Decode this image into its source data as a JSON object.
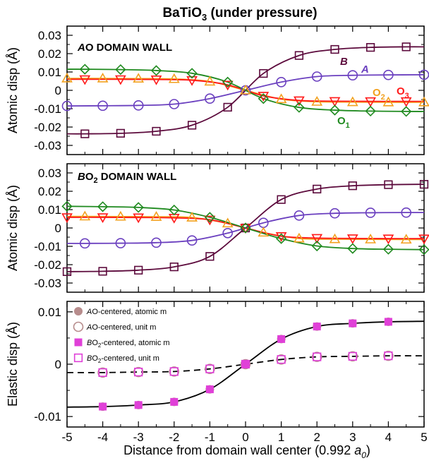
{
  "figure": {
    "title": "BaTiO3 (under pressure)",
    "title_main": "BaTiO",
    "title_sub": "3",
    "title_rest": " (under pressure)",
    "xlabel_main": "Distance from domain wall center (0.992 ",
    "xlabel_a": "a",
    "xlabel_sub": "0",
    "xlabel_close": ")"
  },
  "chart_data": [
    {
      "type": "line",
      "title": "AO DOMAIN WALL",
      "title_italic": "A",
      "title_rest": "O DOMAIN WALL",
      "ylabel": "Atomic disp (Å)",
      "xlim": [
        -5,
        5
      ],
      "ylim": [
        -0.035,
        0.035
      ],
      "xticks": [
        -5,
        -4,
        -3,
        -2,
        -1,
        0,
        1,
        2,
        3,
        4,
        5
      ],
      "yticks": [
        -0.03,
        -0.02,
        -0.01,
        0,
        0.01,
        0.02,
        0.03
      ],
      "ytick_labels": [
        "-0.03",
        "-0.02",
        "-0.01",
        "0",
        "0.01",
        "0.02",
        "0.03"
      ],
      "series": [
        {
          "name": "B",
          "color": "#5c0a3c",
          "marker": "square",
          "x": [
            -4.5,
            -3.5,
            -2.5,
            -1.5,
            -0.5,
            0.5,
            1.5,
            2.5,
            3.5,
            4.5
          ],
          "y": [
            -0.0237,
            -0.0234,
            -0.0223,
            -0.019,
            -0.0092,
            0.0092,
            0.019,
            0.0223,
            0.0234,
            0.0237
          ],
          "label": "B",
          "label_italic": true
        },
        {
          "name": "A",
          "color": "#6a3fbf",
          "marker": "circle",
          "x": [
            -5,
            -4,
            -3,
            -2,
            -1,
            0,
            1,
            2,
            3,
            4,
            5
          ],
          "y": [
            -0.0085,
            -0.0084,
            -0.0082,
            -0.0075,
            -0.0045,
            0,
            0.0045,
            0.0075,
            0.0082,
            0.0084,
            0.0085
          ],
          "label": "A",
          "label_italic": true
        },
        {
          "name": "O2",
          "color": "#f2a11f",
          "marker": "triangle-up",
          "x": [
            -5,
            -4,
            -3,
            -2,
            -1,
            0,
            1,
            2,
            3,
            4,
            5
          ],
          "y": [
            0.0065,
            0.0065,
            0.0064,
            0.0062,
            0.0048,
            0,
            -0.0048,
            -0.0062,
            -0.0064,
            -0.0065,
            -0.0065
          ],
          "label": "O",
          "label_sub": "2"
        },
        {
          "name": "O3",
          "color": "#ff1a1a",
          "marker": "triangle-down",
          "x": [
            -4.5,
            -3.5,
            -2.5,
            -1.5,
            -0.5,
            0.5,
            1.5,
            2.5,
            3.5,
            4.5
          ],
          "y": [
            0.006,
            0.006,
            0.0059,
            0.0055,
            0.003,
            -0.003,
            -0.0055,
            -0.0059,
            -0.006,
            -0.006
          ],
          "label": "O",
          "label_sub": "3"
        },
        {
          "name": "O1",
          "color": "#1f8a1f",
          "marker": "diamond",
          "x": [
            -4.5,
            -3.5,
            -2.5,
            -1.5,
            -0.5,
            0.5,
            1.5,
            2.5,
            3.5,
            4.5
          ],
          "y": [
            0.0115,
            0.0113,
            0.0108,
            0.0093,
            0.0045,
            -0.0045,
            -0.0093,
            -0.0108,
            -0.0113,
            -0.0115
          ],
          "label": "O",
          "label_sub": "1"
        }
      ]
    },
    {
      "type": "line",
      "title": "BO2 DOMAIN WALL",
      "title_italic": "B",
      "title_rest": "O",
      "title_sub": "2",
      "title_tail": " DOMAIN WALL",
      "ylabel": "Atomic disp (Å)",
      "xlim": [
        -5,
        5
      ],
      "ylim": [
        -0.035,
        0.035
      ],
      "xticks": [
        -5,
        -4,
        -3,
        -2,
        -1,
        0,
        1,
        2,
        3,
        4,
        5
      ],
      "yticks": [
        -0.03,
        -0.02,
        -0.01,
        0,
        0.01,
        0.02,
        0.03
      ],
      "ytick_labels": [
        "-0.03",
        "-0.02",
        "-0.01",
        "0",
        "0.01",
        "0.02",
        "0.03"
      ],
      "series": [
        {
          "name": "B",
          "color": "#5c0a3c",
          "marker": "square",
          "x": [
            -5,
            -4,
            -3,
            -2,
            -1,
            0,
            1,
            2,
            3,
            4,
            5
          ],
          "y": [
            -0.0238,
            -0.0236,
            -0.023,
            -0.0212,
            -0.0155,
            0,
            0.0155,
            0.0212,
            0.023,
            0.0236,
            0.0238
          ]
        },
        {
          "name": "A",
          "color": "#6a3fbf",
          "marker": "circle",
          "x": [
            -4.5,
            -3.5,
            -2.5,
            -1.5,
            -0.5,
            0.5,
            1.5,
            2.5,
            3.5,
            4.5
          ],
          "y": [
            -0.0084,
            -0.0083,
            -0.008,
            -0.0068,
            -0.0028,
            0.0028,
            0.0068,
            0.008,
            0.0083,
            0.0084
          ]
        },
        {
          "name": "O2",
          "color": "#f2a11f",
          "marker": "triangle-up",
          "x": [
            -4.5,
            -3.5,
            -2.5,
            -1.5,
            -0.5,
            0.5,
            1.5,
            2.5,
            3.5,
            4.5
          ],
          "y": [
            0.0063,
            0.0062,
            0.0061,
            0.0057,
            0.0025,
            -0.0025,
            -0.0057,
            -0.0061,
            -0.0062,
            -0.0063
          ]
        },
        {
          "name": "O3",
          "color": "#ff1a1a",
          "marker": "triangle-down",
          "x": [
            -5,
            -4,
            -3,
            -2,
            -1,
            0,
            1,
            2,
            3,
            4,
            5
          ],
          "y": [
            0.0058,
            0.0058,
            0.0057,
            0.0055,
            0.0045,
            0,
            -0.0045,
            -0.0055,
            -0.0057,
            -0.0058,
            -0.0058
          ]
        },
        {
          "name": "O1",
          "color": "#1f8a1f",
          "marker": "diamond",
          "x": [
            -5,
            -4,
            -3,
            -2,
            -1,
            0,
            1,
            2,
            3,
            4,
            5
          ],
          "y": [
            0.0118,
            0.0116,
            0.0112,
            0.0098,
            0.0058,
            0,
            -0.0058,
            -0.0098,
            -0.0112,
            -0.0116,
            -0.0118
          ]
        }
      ]
    },
    {
      "type": "line",
      "ylabel": "Elastic disp (Å)",
      "xlim": [
        -5,
        5
      ],
      "ylim": [
        -0.012,
        0.012
      ],
      "xticks": [
        -5,
        -4,
        -3,
        -2,
        -1,
        0,
        1,
        2,
        3,
        4,
        5
      ],
      "xtick_labels": [
        "-5",
        "-4",
        "-3",
        "-2",
        "-1",
        "0",
        "1",
        "2",
        "3",
        "4",
        "5"
      ],
      "yticks": [
        -0.01,
        0,
        0.01
      ],
      "ytick_labels": [
        "-0.01",
        "0",
        "0.01"
      ],
      "curves": [
        {
          "name": "atomic m",
          "style": "solid",
          "x": [
            -5,
            -4,
            -3,
            -2,
            -1,
            0,
            1,
            2,
            3,
            4,
            5
          ],
          "y": [
            -0.0082,
            -0.0081,
            -0.0078,
            -0.0072,
            -0.0048,
            0,
            0.0048,
            0.0072,
            0.0078,
            0.0081,
            0.0082
          ]
        },
        {
          "name": "unit m",
          "style": "dashed",
          "x": [
            -5,
            -4,
            -3,
            -2,
            -1,
            0,
            1,
            2,
            3,
            4,
            5
          ],
          "y": [
            -0.0016,
            -0.0016,
            -0.0015,
            -0.0014,
            -0.0009,
            0,
            0.0009,
            0.0014,
            0.0015,
            0.0016,
            0.0016
          ]
        }
      ],
      "series": [
        {
          "name": "AO-centered, atomic m",
          "color": "#b78c8c",
          "marker": "filled-circle",
          "x": [
            -4,
            -3,
            -2,
            -1,
            0,
            1,
            2,
            3,
            4
          ],
          "y": [
            -0.0081,
            -0.0078,
            -0.0072,
            -0.0048,
            0,
            0.0048,
            0.0072,
            0.0078,
            0.0081
          ],
          "legend_italic": "A",
          "legend_rest": "O-centered, atomic m"
        },
        {
          "name": "AO-centered, unit m",
          "color": "#b78c8c",
          "marker": "open-circle",
          "x": [
            -4,
            -3,
            -2,
            -1,
            0,
            1,
            2,
            3,
            4
          ],
          "y": [
            -0.0016,
            -0.0015,
            -0.0014,
            -0.0009,
            0,
            0.0009,
            0.0014,
            0.0015,
            0.0016
          ],
          "legend_italic": "A",
          "legend_rest": "O-centered, unit m"
        },
        {
          "name": "BO2-centered, atomic m",
          "color": "#e040d8",
          "marker": "filled-square",
          "x": [
            -4,
            -3,
            -2,
            -1,
            0,
            1,
            2,
            3,
            4
          ],
          "y": [
            -0.0081,
            -0.0078,
            -0.0072,
            -0.0048,
            0,
            0.0048,
            0.0072,
            0.0078,
            0.0081
          ],
          "legend_italic": "B",
          "legend_rest": "O",
          "legend_sub": "2",
          "legend_tail": "-centered, atomic m"
        },
        {
          "name": "BO2-centered, unit m",
          "color": "#e040d8",
          "marker": "open-square",
          "x": [
            -4,
            -3,
            -2,
            -1,
            0,
            1,
            2,
            3,
            4
          ],
          "y": [
            -0.0016,
            -0.0015,
            -0.0014,
            -0.0009,
            0,
            0.0009,
            0.0014,
            0.0015,
            0.0016
          ],
          "legend_italic": "B",
          "legend_rest": "O",
          "legend_sub": "2",
          "legend_tail": "-centered, unit m"
        }
      ]
    }
  ]
}
